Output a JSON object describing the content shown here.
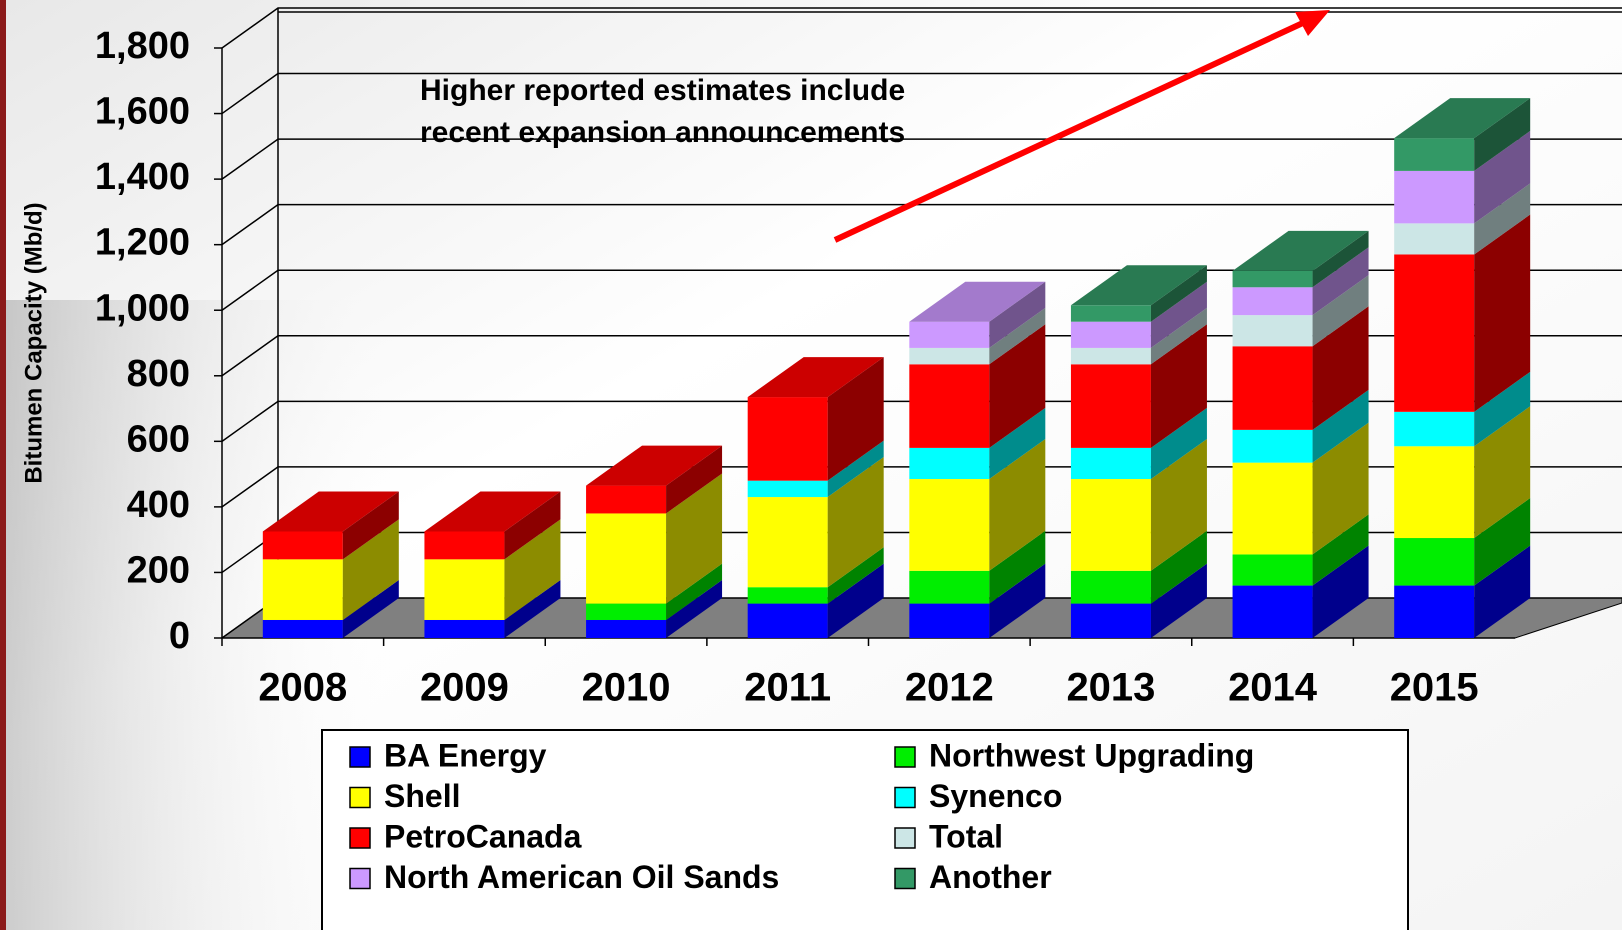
{
  "chart_data": {
    "type": "bar3d_stacked",
    "annotation": [
      "Higher reported estimates include",
      "recent expansion announcements"
    ],
    "ylabel": "Bitumen Capacity (Mb/d)",
    "categories": [
      "2008",
      "2009",
      "2010",
      "2011",
      "2012",
      "2013",
      "2014",
      "2015"
    ],
    "series": [
      {
        "name": "BA Energy",
        "color": "#0000ff",
        "values": [
          55,
          55,
          55,
          105,
          105,
          105,
          160,
          160
        ]
      },
      {
        "name": "Northwest Upgrading",
        "color": "#00ee00",
        "values": [
          0,
          0,
          50,
          50,
          100,
          100,
          95,
          145
        ]
      },
      {
        "name": "Shell",
        "color": "#ffff00",
        "values": [
          185,
          185,
          275,
          275,
          280,
          280,
          280,
          280
        ]
      },
      {
        "name": "Synenco",
        "color": "#00ffff",
        "values": [
          0,
          0,
          0,
          50,
          95,
          95,
          100,
          105
        ]
      },
      {
        "name": "PetroCanada",
        "color": "#ff0000",
        "values": [
          85,
          85,
          85,
          255,
          255,
          255,
          255,
          480
        ]
      },
      {
        "name": "Total",
        "color": "#cce6e6",
        "values": [
          0,
          0,
          0,
          0,
          50,
          50,
          95,
          95
        ]
      },
      {
        "name": "North American Oil Sands",
        "color": "#cc99ff",
        "values": [
          0,
          0,
          0,
          0,
          80,
          80,
          85,
          160
        ]
      },
      {
        "name": "Another",
        "color": "#339966",
        "values": [
          0,
          0,
          0,
          0,
          0,
          50,
          50,
          100
        ]
      }
    ],
    "ylim": [
      0,
      1800
    ],
    "yticks": [
      0,
      200,
      400,
      600,
      800,
      {
        "value": 1000,
        "label": "1,000"
      },
      {
        "value": 1200,
        "label": "1,200"
      },
      {
        "value": 1400,
        "label": "1,400"
      },
      {
        "value": 1600,
        "label": "1,600"
      },
      {
        "value": 1800,
        "label": "1,800"
      }
    ],
    "grid": true
  }
}
